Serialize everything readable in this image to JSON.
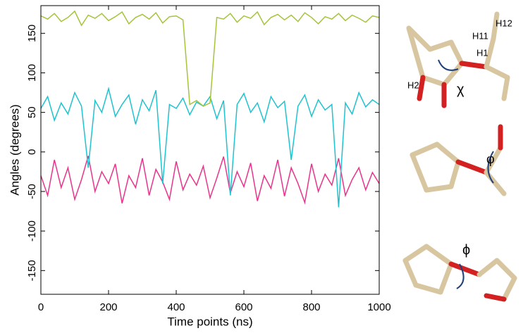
{
  "chart_data": {
    "type": "line",
    "xlabel": "Time points (ns)",
    "ylabel": "Angles (degrees)",
    "x": [
      0,
      20,
      40,
      60,
      80,
      100,
      120,
      140,
      160,
      180,
      200,
      220,
      240,
      260,
      280,
      300,
      320,
      340,
      360,
      380,
      400,
      420,
      440,
      460,
      480,
      500,
      520,
      540,
      560,
      580,
      600,
      620,
      640,
      660,
      680,
      700,
      720,
      740,
      760,
      780,
      800,
      820,
      840,
      860,
      880,
      900,
      920,
      940,
      960,
      980,
      1000
    ],
    "series": [
      {
        "color": "#e8348c",
        "values": [
          -30,
          -55,
          -10,
          -45,
          -20,
          -60,
          -35,
          -5,
          -50,
          -25,
          -40,
          -15,
          -65,
          -30,
          -45,
          -8,
          -55,
          -22,
          -38,
          -60,
          -12,
          -48,
          -28,
          -42,
          -18,
          -58,
          -33,
          -6,
          -52,
          -25,
          -44,
          -14,
          -62,
          -30,
          -46,
          -10,
          -56,
          -20,
          -40,
          -64,
          -15,
          -50,
          -28,
          -42,
          -8,
          -55,
          -35,
          -20,
          -48,
          -26,
          -40
        ]
      },
      {
        "color": "#1fc3d0",
        "values": [
          55,
          70,
          40,
          62,
          48,
          75,
          58,
          -20,
          65,
          50,
          80,
          45,
          60,
          72,
          35,
          66,
          52,
          78,
          -40,
          60,
          55,
          68,
          47,
          63,
          58,
          70,
          42,
          65,
          -55,
          60,
          74,
          50,
          62,
          38,
          70,
          56,
          64,
          -10,
          58,
          72,
          45,
          66,
          53,
          60,
          -70,
          62,
          48,
          75,
          57,
          66,
          60
        ]
      },
      {
        "color": "#a6c43a",
        "values": [
          172,
          168,
          175,
          165,
          170,
          178,
          160,
          173,
          169,
          175,
          166,
          171,
          177,
          162,
          170,
          174,
          168,
          176,
          163,
          171,
          172,
          167,
          60,
          65,
          58,
          62,
          170,
          168,
          175,
          164,
          172,
          169,
          177,
          161,
          170,
          174,
          167,
          173,
          165,
          176,
          170,
          162,
          171,
          168,
          175,
          166,
          173,
          169,
          164,
          172,
          170
        ]
      }
    ],
    "xlim": [
      0,
      1000
    ],
    "xticks": [
      0,
      200,
      400,
      600,
      800,
      1000
    ],
    "ylim": [
      -180,
      185
    ],
    "yticks": [
      -150,
      -100,
      -50,
      0,
      50,
      100,
      150
    ],
    "annotations": [
      "H12",
      "H11",
      "H1",
      "H2",
      "χ",
      "φ",
      "ϕ"
    ]
  }
}
